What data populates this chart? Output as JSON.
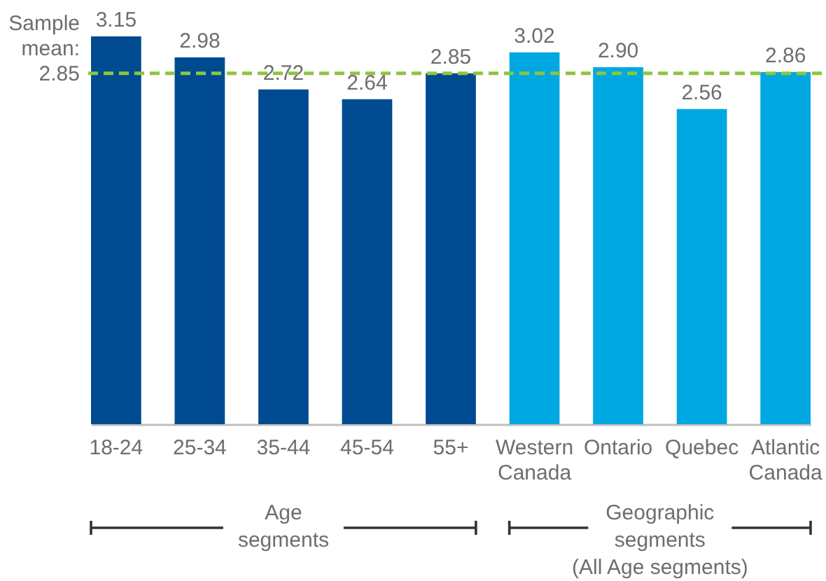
{
  "chart_data": {
    "type": "bar",
    "categories": [
      "18-24",
      "25-34",
      "35-44",
      "45-54",
      "55+",
      "Western Canada",
      "Ontario",
      "Quebec",
      "Atlantic Canada"
    ],
    "values": [
      3.15,
      2.98,
      2.72,
      2.64,
      2.85,
      3.02,
      2.9,
      2.56,
      2.86
    ],
    "colors": [
      "#004a91",
      "#004a91",
      "#004a91",
      "#004a91",
      "#004a91",
      "#00a8e1",
      "#00a8e1",
      "#00a8e1",
      "#00a8e1"
    ],
    "value_labels": [
      "3.15",
      "2.98",
      "2.72",
      "2.64",
      "2.85",
      "3.02",
      "2.90",
      "2.56",
      "2.86"
    ],
    "ref_lines": [
      {
        "axis": "y",
        "value": 2.85,
        "label": "Sample mean: 2.85",
        "color": "#8cc63e",
        "line_style": "dashed"
      }
    ],
    "annotations": [
      "Age segments",
      "Geographic segments (All Age segments)"
    ],
    "tick_labels": "x"
  }
}
